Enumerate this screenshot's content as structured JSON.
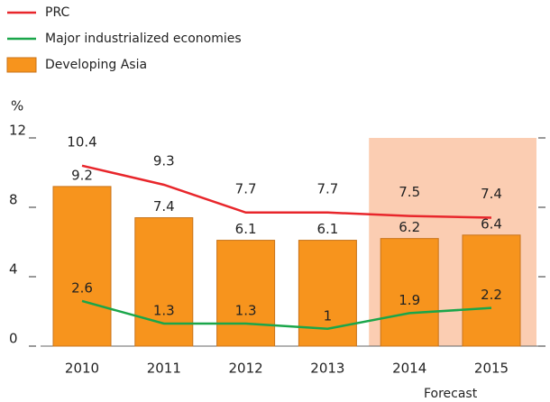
{
  "chart_data": {
    "type": "bar",
    "ylabel": "%",
    "categories": [
      "2010",
      "2011",
      "2012",
      "2013",
      "2014",
      "2015"
    ],
    "series": [
      {
        "name": "PRC",
        "type": "line",
        "color": "#e8262b",
        "values": [
          10.4,
          9.3,
          7.7,
          7.7,
          7.5,
          7.4
        ]
      },
      {
        "name": "Major industrialized economies",
        "type": "line",
        "color": "#1aa64a",
        "values": [
          2.6,
          1.3,
          1.3,
          1.0,
          1.9,
          2.2
        ]
      },
      {
        "name": "Developing Asia",
        "type": "bar",
        "color": "#f7941d",
        "values": [
          9.2,
          7.4,
          6.1,
          6.1,
          6.2,
          6.4
        ]
      }
    ],
    "ylim": [
      0,
      12
    ],
    "yticks": [
      0,
      4,
      8,
      12
    ],
    "forecast": {
      "label": "Forecast",
      "categories": [
        4,
        5
      ],
      "color": "#fbcdb2"
    }
  }
}
